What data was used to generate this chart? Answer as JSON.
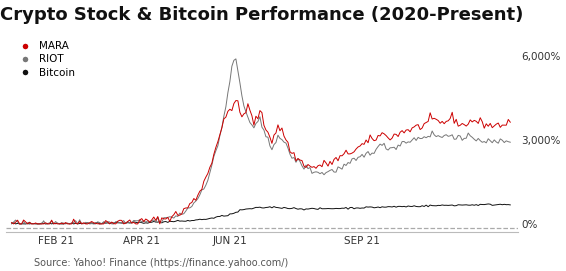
{
  "title": "Crypto Stock & Bitcoin Performance (2020-Present)",
  "source": "Source: Yahoo! Finance (https://finance.yahoo.com/)",
  "x_tick_labels": [
    "FEB 21",
    "APR 21",
    "JUN 21",
    "SEP 21"
  ],
  "y_tick_labels": [
    "0%",
    "3,000%",
    "6,000%"
  ],
  "y_ticks": [
    0,
    3000,
    6000
  ],
  "ylim": [
    -300,
    7000
  ],
  "xlim": [
    -3,
    253
  ],
  "legend": [
    {
      "label": "MARA",
      "color": "#cc0000"
    },
    {
      "label": "RIOT",
      "color": "#777777"
    },
    {
      "label": "Bitcoin",
      "color": "#111111"
    }
  ],
  "dashed_line_color": "#aaaaaa",
  "dashed_line_y": -150,
  "background_color": "#ffffff",
  "title_fontsize": 13,
  "source_fontsize": 7,
  "n": 250,
  "mara_pts": [
    [
      0,
      10
    ],
    [
      15,
      15
    ],
    [
      30,
      20
    ],
    [
      45,
      30
    ],
    [
      55,
      50
    ],
    [
      65,
      80
    ],
    [
      75,
      150
    ],
    [
      85,
      400
    ],
    [
      92,
      900
    ],
    [
      98,
      1800
    ],
    [
      103,
      3000
    ],
    [
      108,
      4000
    ],
    [
      112,
      4400
    ],
    [
      115,
      3800
    ],
    [
      118,
      4200
    ],
    [
      121,
      3600
    ],
    [
      124,
      4000
    ],
    [
      127,
      3400
    ],
    [
      130,
      3000
    ],
    [
      133,
      3500
    ],
    [
      136,
      3200
    ],
    [
      140,
      2500
    ],
    [
      145,
      2200
    ],
    [
      150,
      2000
    ],
    [
      155,
      2100
    ],
    [
      160,
      2200
    ],
    [
      165,
      2400
    ],
    [
      170,
      2600
    ],
    [
      175,
      2800
    ],
    [
      180,
      3000
    ],
    [
      185,
      3200
    ],
    [
      190,
      3100
    ],
    [
      195,
      3300
    ],
    [
      200,
      3400
    ],
    [
      205,
      3500
    ],
    [
      210,
      3700
    ],
    [
      215,
      3600
    ],
    [
      220,
      3800
    ],
    [
      225,
      3500
    ],
    [
      230,
      3700
    ],
    [
      235,
      3600
    ],
    [
      240,
      3500
    ],
    [
      249,
      3600
    ]
  ],
  "riot_pts": [
    [
      0,
      10
    ],
    [
      15,
      12
    ],
    [
      30,
      18
    ],
    [
      45,
      25
    ],
    [
      55,
      40
    ],
    [
      65,
      70
    ],
    [
      75,
      130
    ],
    [
      85,
      350
    ],
    [
      92,
      800
    ],
    [
      98,
      1600
    ],
    [
      103,
      2800
    ],
    [
      107,
      4200
    ],
    [
      110,
      5600
    ],
    [
      112,
      5900
    ],
    [
      114,
      5000
    ],
    [
      116,
      4200
    ],
    [
      118,
      3800
    ],
    [
      121,
      3400
    ],
    [
      124,
      3700
    ],
    [
      127,
      3100
    ],
    [
      130,
      2700
    ],
    [
      133,
      3200
    ],
    [
      136,
      2900
    ],
    [
      140,
      2400
    ],
    [
      145,
      2100
    ],
    [
      150,
      1900
    ],
    [
      155,
      1800
    ],
    [
      160,
      1900
    ],
    [
      165,
      2000
    ],
    [
      170,
      2200
    ],
    [
      175,
      2400
    ],
    [
      180,
      2600
    ],
    [
      185,
      2800
    ],
    [
      190,
      2700
    ],
    [
      195,
      2900
    ],
    [
      200,
      3000
    ],
    [
      205,
      3100
    ],
    [
      210,
      3200
    ],
    [
      215,
      3100
    ],
    [
      220,
      3200
    ],
    [
      225,
      3000
    ],
    [
      230,
      3100
    ],
    [
      235,
      3000
    ],
    [
      240,
      2900
    ],
    [
      249,
      3000
    ]
  ],
  "bitcoin_pts": [
    [
      0,
      10
    ],
    [
      20,
      15
    ],
    [
      40,
      25
    ],
    [
      60,
      40
    ],
    [
      80,
      80
    ],
    [
      90,
      120
    ],
    [
      100,
      200
    ],
    [
      110,
      350
    ],
    [
      115,
      500
    ],
    [
      120,
      550
    ],
    [
      125,
      580
    ],
    [
      130,
      600
    ],
    [
      135,
      580
    ],
    [
      140,
      560
    ],
    [
      145,
      540
    ],
    [
      150,
      530
    ],
    [
      155,
      540
    ],
    [
      160,
      550
    ],
    [
      165,
      560
    ],
    [
      170,
      570
    ],
    [
      175,
      580
    ],
    [
      180,
      590
    ],
    [
      190,
      610
    ],
    [
      200,
      630
    ],
    [
      210,
      650
    ],
    [
      220,
      670
    ],
    [
      230,
      680
    ],
    [
      240,
      690
    ],
    [
      249,
      700
    ]
  ],
  "mara_noise": 80,
  "riot_noise": 60,
  "bitcoin_noise": 15
}
